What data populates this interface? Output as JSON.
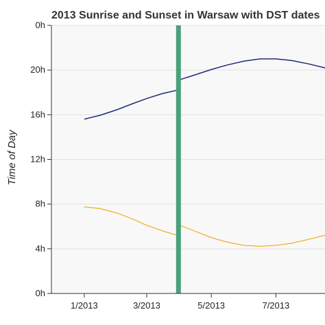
{
  "chart_data": {
    "type": "line",
    "title": "2013 Sunrise and Sunset in Warsaw with DST dates",
    "xlabel": "",
    "ylabel": "Time of Day",
    "xlim": [
      "2012-12-01",
      "2013-08-30"
    ],
    "ylim": [
      0,
      24
    ],
    "x_ticks": [
      {
        "date": "2013-01-01",
        "label": "1/2013"
      },
      {
        "date": "2013-03-01",
        "label": "3/2013"
      },
      {
        "date": "2013-05-01",
        "label": "5/2013"
      },
      {
        "date": "2013-07-01",
        "label": "7/2013"
      }
    ],
    "y_ticks": [
      {
        "value": 0,
        "label": "0h"
      },
      {
        "value": 4,
        "label": "4h"
      },
      {
        "value": 8,
        "label": "8h"
      },
      {
        "value": 12,
        "label": "12h"
      },
      {
        "value": 16,
        "label": "16h"
      },
      {
        "value": 20,
        "label": "20h"
      },
      {
        "value": 24,
        "label": "0h"
      }
    ],
    "grid": true,
    "dst_marker": {
      "date": "2013-03-31",
      "color": "#4aa07a"
    },
    "series": [
      {
        "color": "#1f2a78",
        "x": [
          "2013-01-01",
          "2013-01-16",
          "2013-02-01",
          "2013-02-16",
          "2013-03-01",
          "2013-03-16",
          "2013-03-30",
          "2013-03-31",
          "2013-04-15",
          "2013-05-01",
          "2013-05-16",
          "2013-06-01",
          "2013-06-16",
          "2013-07-01",
          "2013-07-16",
          "2013-08-01",
          "2013-08-16",
          "2013-08-30"
        ],
        "values": [
          15.6,
          15.95,
          16.45,
          17.0,
          17.45,
          17.9,
          18.2,
          19.1,
          19.55,
          20.05,
          20.45,
          20.8,
          21.0,
          21.0,
          20.85,
          20.55,
          20.2,
          19.85
        ]
      },
      {
        "color": "#f0b030",
        "x": [
          "2013-01-01",
          "2013-01-16",
          "2013-02-01",
          "2013-02-16",
          "2013-03-01",
          "2013-03-16",
          "2013-03-30",
          "2013-03-31",
          "2013-04-15",
          "2013-05-01",
          "2013-05-16",
          "2013-06-01",
          "2013-06-16",
          "2013-07-01",
          "2013-07-16",
          "2013-08-01",
          "2013-08-16",
          "2013-08-30"
        ],
        "values": [
          7.75,
          7.6,
          7.2,
          6.65,
          6.1,
          5.6,
          5.2,
          6.15,
          5.6,
          5.0,
          4.6,
          4.3,
          4.22,
          4.3,
          4.5,
          4.85,
          5.2,
          5.55
        ]
      }
    ]
  }
}
